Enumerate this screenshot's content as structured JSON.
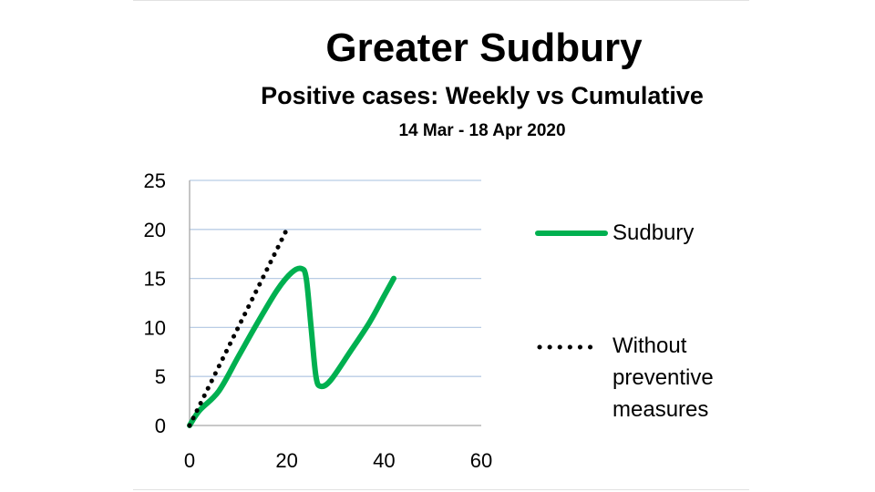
{
  "header": {
    "title": "Greater Sudbury",
    "subtitle": "Positive cases: Weekly vs Cumulative",
    "period": "14 Mar - 18 Apr 2020"
  },
  "legend": {
    "sudbury": "Sudbury",
    "without_line1": "Without",
    "without_line2": "preventive",
    "without_line3": "measures"
  },
  "colors": {
    "sudbury": "#00b050",
    "without": "#000000",
    "grid": "#b9cde5",
    "axis": "#a6a6a6"
  },
  "chart_data": {
    "type": "line",
    "title": "Greater Sudbury",
    "xlim": [
      0,
      60
    ],
    "ylim": [
      0,
      25
    ],
    "x_ticks": [
      0,
      20,
      40,
      60
    ],
    "y_ticks": [
      0,
      5,
      10,
      15,
      20,
      25
    ],
    "grid": "horizontal",
    "legend_position": "right",
    "series": [
      {
        "name": "Sudbury",
        "style": "solid",
        "points": [
          [
            0,
            0
          ],
          [
            2,
            1.5
          ],
          [
            6,
            3.5
          ],
          [
            10,
            7
          ],
          [
            14,
            10.5
          ],
          [
            18,
            13.8
          ],
          [
            21,
            15.6
          ],
          [
            23,
            16
          ],
          [
            24,
            15
          ],
          [
            25,
            10
          ],
          [
            26,
            5
          ],
          [
            27,
            4
          ],
          [
            29,
            4.6
          ],
          [
            33,
            7.5
          ],
          [
            37,
            10.5
          ],
          [
            40,
            13.2
          ],
          [
            42,
            15
          ]
        ]
      },
      {
        "name": "Without preventive measures",
        "style": "dotted",
        "points": [
          [
            0,
            0
          ],
          [
            20,
            20
          ]
        ]
      }
    ]
  }
}
